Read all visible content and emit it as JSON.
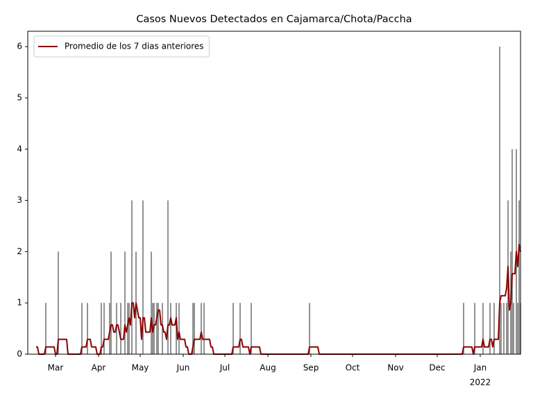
{
  "chart_data": {
    "type": "bar+line",
    "title": "Casos Nuevos Detectados en Cajamarca/Chota/Paccha",
    "xlim": [
      0,
      355
    ],
    "ylim": [
      0,
      6.3
    ],
    "yticks": [
      0,
      1,
      2,
      3,
      4,
      5,
      6
    ],
    "xticks": [
      {
        "value": 20,
        "label": "Mar"
      },
      {
        "value": 51,
        "label": "Apr"
      },
      {
        "value": 81,
        "label": "May"
      },
      {
        "value": 112,
        "label": "Jun"
      },
      {
        "value": 142,
        "label": "Jul"
      },
      {
        "value": 173,
        "label": "Aug"
      },
      {
        "value": 204,
        "label": "Sep"
      },
      {
        "value": 234,
        "label": "Oct"
      },
      {
        "value": 265,
        "label": "Nov"
      },
      {
        "value": 295,
        "label": "Dec"
      },
      {
        "value": 326,
        "label": "Jan"
      }
    ],
    "x_year_label": "2022",
    "legend": "upper left",
    "bars": {
      "color": "#777777",
      "x": [
        13,
        22,
        39,
        43,
        53,
        55,
        59,
        60,
        64,
        67,
        70,
        72,
        73,
        75,
        78,
        83,
        89,
        90,
        91,
        93,
        94,
        97,
        101,
        103,
        107,
        109,
        119,
        120,
        125,
        127,
        148,
        153,
        161,
        203,
        314,
        322,
        328,
        333,
        336,
        340,
        341,
        343,
        345,
        346,
        348,
        349,
        350,
        352,
        353,
        354,
        355
      ],
      "values": [
        1,
        2,
        1,
        1,
        1,
        1,
        1,
        2,
        1,
        1,
        2,
        1,
        1,
        3,
        2,
        3,
        2,
        1,
        1,
        1,
        1,
        1,
        3,
        1,
        1,
        1,
        1,
        1,
        1,
        1,
        1,
        1,
        1,
        1,
        1,
        1,
        1,
        1,
        1,
        6,
        1,
        1,
        1,
        3,
        2,
        4,
        1,
        4,
        1,
        3,
        1
      ]
    },
    "series": [
      {
        "name": "Promedio de los 7 dias anteriores",
        "color": "#8b0000",
        "x": [
          6,
          7,
          8,
          12,
          13,
          19,
          20,
          21,
          22,
          28,
          29,
          38,
          39,
          42,
          43,
          45,
          46,
          49,
          50,
          52,
          53,
          54,
          55,
          58,
          59,
          60,
          61,
          62,
          63,
          64,
          65,
          66,
          67,
          69,
          70,
          71,
          72,
          73,
          74,
          75,
          76,
          77,
          78,
          79,
          80,
          81,
          82,
          83,
          84,
          85,
          88,
          89,
          90,
          91,
          92,
          93,
          94,
          95,
          96,
          97,
          98,
          99,
          100,
          101,
          102,
          103,
          104,
          106,
          107,
          108,
          109,
          110,
          113,
          114,
          115,
          116,
          118,
          119,
          120,
          124,
          125,
          126,
          131,
          132,
          133,
          134,
          147,
          148,
          152,
          153,
          154,
          155,
          159,
          160,
          161,
          167,
          168,
          202,
          203,
          209,
          210,
          313,
          314,
          320,
          321,
          322,
          327,
          328,
          329,
          332,
          333,
          334,
          335,
          336,
          339,
          340,
          341,
          344,
          345,
          346,
          347,
          348,
          349,
          351,
          352,
          353,
          354,
          355
        ],
        "values": [
          0.14,
          0.14,
          0,
          0,
          0.14,
          0.14,
          0,
          0,
          0.29,
          0.29,
          0,
          0,
          0.14,
          0.14,
          0.29,
          0.29,
          0.14,
          0.14,
          0,
          0,
          0.14,
          0.14,
          0.29,
          0.29,
          0.43,
          0.57,
          0.57,
          0.43,
          0.43,
          0.57,
          0.57,
          0.43,
          0.29,
          0.29,
          0.57,
          0.43,
          0.57,
          0.71,
          0.57,
          1,
          1,
          0.71,
          1,
          0.86,
          0.71,
          0.71,
          0.29,
          0.71,
          0.71,
          0.43,
          0.43,
          0.71,
          0.43,
          0.57,
          0.57,
          0.71,
          0.86,
          0.86,
          0.57,
          0.57,
          0.43,
          0.43,
          0.29,
          0.57,
          0.57,
          0.71,
          0.57,
          0.57,
          0.71,
          0.29,
          0.43,
          0.29,
          0.29,
          0.14,
          0.14,
          0,
          0,
          0.14,
          0.29,
          0.29,
          0.43,
          0.29,
          0.29,
          0.14,
          0.14,
          0,
          0,
          0.14,
          0.14,
          0.29,
          0.29,
          0.14,
          0.14,
          0,
          0.14,
          0.14,
          0,
          0,
          0.14,
          0.14,
          0,
          0,
          0.14,
          0.14,
          0,
          0.14,
          0.14,
          0.29,
          0.14,
          0.14,
          0.29,
          0.29,
          0.14,
          0.29,
          0.29,
          1,
          1.14,
          1.14,
          1.29,
          1.71,
          0.86,
          1,
          1.57,
          1.57,
          2,
          1.71,
          2.14,
          2
        ]
      }
    ]
  }
}
